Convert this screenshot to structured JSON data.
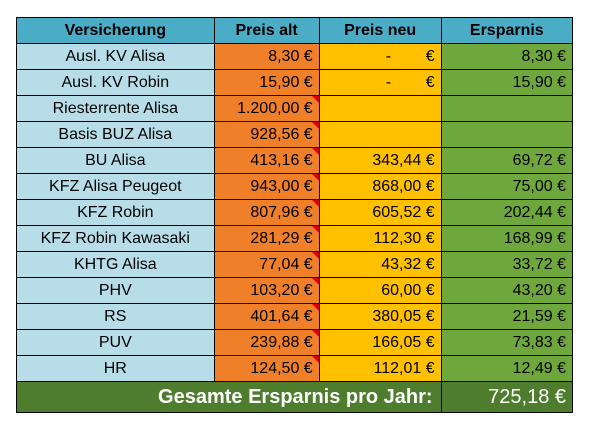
{
  "headers": {
    "versicherung": "Versicherung",
    "preis_alt": "Preis alt",
    "preis_neu": "Preis neu",
    "ersparnis": "Ersparnis"
  },
  "rows": [
    {
      "name": "Ausl. KV Alisa",
      "alt": "8,30 €",
      "neu_dash": "-",
      "neu_euro": "€",
      "save": "8,30 €",
      "comment": false
    },
    {
      "name": "Ausl. KV Robin",
      "alt": "15,90 €",
      "neu_dash": "-",
      "neu_euro": "€",
      "save": "15,90 €",
      "comment": false
    },
    {
      "name": "Riesterrente Alisa",
      "alt": "1.200,00 €",
      "neu": "",
      "save": "",
      "comment": true
    },
    {
      "name": "Basis BUZ Alisa",
      "alt": "928,56 €",
      "neu": "",
      "save": "",
      "comment": true
    },
    {
      "name": "BU Alisa",
      "alt": "413,16 €",
      "neu": "343,44 €",
      "save": "69,72 €",
      "comment": true
    },
    {
      "name": "KFZ Alisa Peugeot",
      "alt": "943,00 €",
      "neu": "868,00 €",
      "save": "75,00 €",
      "comment": true
    },
    {
      "name": "KFZ Robin",
      "alt": "807,96 €",
      "neu": "605,52 €",
      "save": "202,44 €",
      "comment": true
    },
    {
      "name": "KFZ Robin Kawasaki",
      "alt": "281,29 €",
      "neu": "112,30 €",
      "save": "168,99 €",
      "comment": true
    },
    {
      "name": "KHTG Alisa",
      "alt": "77,04 €",
      "neu": "43,32 €",
      "save": "33,72 €",
      "comment": true
    },
    {
      "name": "PHV",
      "alt": "103,20 €",
      "neu": "60,00 €",
      "save": "43,20 €",
      "comment": true
    },
    {
      "name": "RS",
      "alt": "401,64 €",
      "neu": "380,05 €",
      "save": "21,59 €",
      "comment": true
    },
    {
      "name": "PUV",
      "alt": "239,88 €",
      "neu": "166,05 €",
      "save": "73,83 €",
      "comment": true
    },
    {
      "name": "HR",
      "alt": "124,50 €",
      "neu": "112,01 €",
      "save": "12,49 €",
      "comment": true
    }
  ],
  "total": {
    "label": "Gesamte Ersparnis pro Jahr:",
    "value": "725,18 €"
  },
  "colors": {
    "header": "#4bacc6",
    "name_col": "#b7dee8",
    "alt_col": "#f07f2a",
    "neu_col": "#ffc000",
    "save_col": "#6ea83c",
    "total_row": "#4e7d2e",
    "comment_flag": "#e00000"
  }
}
